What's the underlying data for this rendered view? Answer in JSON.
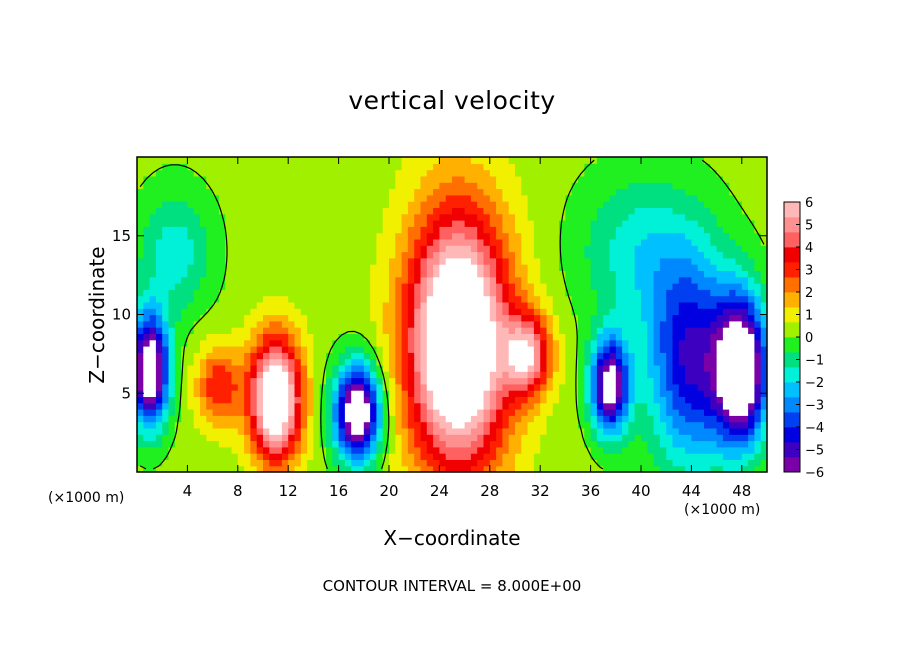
{
  "chart_data": {
    "type": "heatmap",
    "title": "vertical velocity",
    "xlabel": "X−coordinate",
    "ylabel": "Z−coordinate",
    "x_unit_left": "(×1000 m)",
    "x_unit_right": "(×1000 m)",
    "footer": "CONTOUR INTERVAL = 8.000E+00",
    "xlim": [
      0,
      50
    ],
    "ylim": [
      0,
      20
    ],
    "xticks": [
      4,
      8,
      12,
      16,
      20,
      24,
      28,
      32,
      36,
      40,
      44,
      48
    ],
    "yticks": [
      5,
      10,
      15
    ],
    "colorbar": {
      "range": [
        -6,
        6
      ],
      "ticks": [
        "6",
        "5",
        "4",
        "3",
        "2",
        "1",
        "0",
        "−1",
        "−2",
        "−3",
        "−4",
        "−5",
        "−6"
      ],
      "colors": [
        "#7a00a8",
        "#3d00c0",
        "#0000e0",
        "#0040f0",
        "#0088ff",
        "#00c0ff",
        "#00f0d8",
        "#00e080",
        "#20f020",
        "#a0f000",
        "#f0f000",
        "#ffb000",
        "#ff7000",
        "#ff2000",
        "#f00000",
        "#ff6060",
        "#ff9090",
        "#ffb8b8"
      ],
      "saturation_color": "#ffffff"
    },
    "features": [
      {
        "label": "updraft",
        "x": 11,
        "z": 4.7,
        "rx": 2.0,
        "rz": 3.8,
        "value": 8
      },
      {
        "label": "updraft",
        "x": 25.5,
        "z": 8.3,
        "rx": 4.0,
        "rz": 8.0,
        "value": 9
      },
      {
        "label": "updraft",
        "x": 31,
        "z": 7.5,
        "rx": 1.8,
        "rz": 2.5,
        "value": 5
      },
      {
        "label": "updraft",
        "x": 6.5,
        "z": 5.5,
        "rx": 1.8,
        "rz": 2.5,
        "value": 3
      },
      {
        "label": "downdraft",
        "x": 17.5,
        "z": 3.8,
        "rx": 1.8,
        "rz": 3.0,
        "value": -8
      },
      {
        "label": "downdraft",
        "x": 37.5,
        "z": 5.5,
        "rx": 1.5,
        "rz": 3.0,
        "value": -7
      },
      {
        "label": "downdraft",
        "x": 44,
        "z": 7.0,
        "rx": 3.5,
        "rz": 6.5,
        "value": -5
      },
      {
        "label": "downdraft",
        "x": 48,
        "z": 6.5,
        "rx": 2.0,
        "rz": 4.5,
        "value": -8
      },
      {
        "label": "downdraft",
        "x": 1,
        "z": 6.5,
        "rx": 1.5,
        "rz": 3.5,
        "value": -8
      },
      {
        "label": "weak downdraft",
        "x": 3,
        "z": 14,
        "rx": 3.0,
        "rz": 4.0,
        "value": -2
      },
      {
        "label": "weak downdraft",
        "x": 40,
        "z": 14,
        "rx": 5.0,
        "rz": 5.0,
        "value": -2
      }
    ],
    "grid": false,
    "legend": "colorbar-right"
  }
}
